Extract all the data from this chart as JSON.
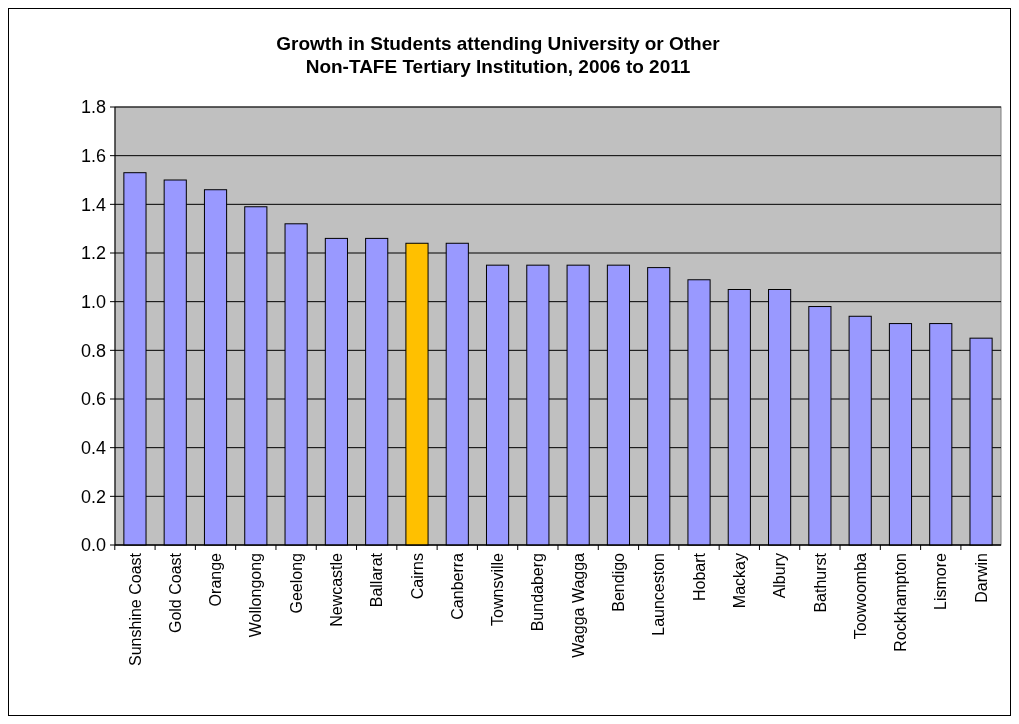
{
  "chart_data": {
    "type": "bar",
    "title": "Growth in Students attending University or Other\nNon-TAFE Tertiary Institution, 2006 to 2011",
    "categories": [
      "Sunshine Coast",
      "Gold Coast",
      "Orange",
      "Wollongong",
      "Geelong",
      "Newcastle",
      "Ballarat",
      "Cairns",
      "Canberra",
      "Townsville",
      "Bundaberg",
      "Wagga Wagga",
      "Bendigo",
      "Launceston",
      "Hobart",
      "Mackay",
      "Albury",
      "Bathurst",
      "Toowoomba",
      "Rockhampton",
      "Lismore",
      "Darwin"
    ],
    "values": [
      1.53,
      1.5,
      1.46,
      1.39,
      1.32,
      1.26,
      1.26,
      1.24,
      1.24,
      1.15,
      1.15,
      1.15,
      1.15,
      1.14,
      1.09,
      1.05,
      1.05,
      0.98,
      0.94,
      0.91,
      0.91,
      0.85
    ],
    "colors": [
      "#9999ff",
      "#9999ff",
      "#9999ff",
      "#9999ff",
      "#9999ff",
      "#9999ff",
      "#9999ff",
      "#ffc000",
      "#9999ff",
      "#9999ff",
      "#9999ff",
      "#9999ff",
      "#9999ff",
      "#9999ff",
      "#9999ff",
      "#9999ff",
      "#9999ff",
      "#9999ff",
      "#9999ff",
      "#9999ff",
      "#9999ff",
      "#9999ff"
    ],
    "ylim": [
      0,
      1.8
    ],
    "yticks": [
      {
        "value": 0,
        "label": "0.0"
      },
      {
        "value": 0.2,
        "label": "0.2"
      },
      {
        "value": 0.4,
        "label": "0.4"
      },
      {
        "value": 0.6,
        "label": "0.6"
      },
      {
        "value": 0.8,
        "label": "0.8"
      },
      {
        "value": 1,
        "label": "1.0"
      },
      {
        "value": 1.2,
        "label": "1.2"
      },
      {
        "value": 1.4,
        "label": "1.4"
      },
      {
        "value": 1.6,
        "label": "1.6"
      },
      {
        "value": 1.8,
        "label": "1.8"
      }
    ],
    "grid": "y"
  }
}
